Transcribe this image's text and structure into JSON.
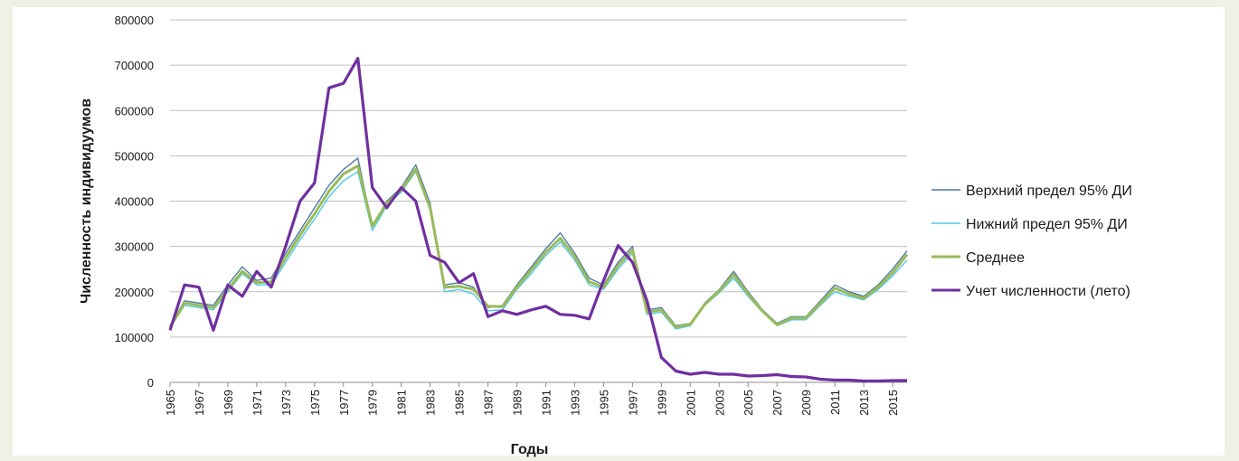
{
  "chart_data": {
    "type": "line",
    "xlabel": "Годы",
    "ylabel": "Численность индивидуумов",
    "ylim": [
      0,
      800000
    ],
    "xlim": [
      1965,
      2016
    ],
    "y_ticks": [
      "0",
      "100000",
      "200000",
      "300000",
      "400000",
      "500000",
      "600000",
      "700000",
      "800000"
    ],
    "x_ticks": [
      "1965",
      "1967",
      "1969",
      "1971",
      "1973",
      "1975",
      "1977",
      "1979",
      "1981",
      "1983",
      "1985",
      "1987",
      "1989",
      "1991",
      "1993",
      "1995",
      "1997",
      "1999",
      "2001",
      "2003",
      "2005",
      "2007",
      "2009",
      "2011",
      "2013",
      "2015"
    ],
    "grid": "horizontal",
    "legend_position": "right",
    "x": [
      1965,
      1966,
      1967,
      1968,
      1969,
      1970,
      1971,
      1972,
      1973,
      1974,
      1975,
      1976,
      1977,
      1978,
      1979,
      1980,
      1981,
      1982,
      1983,
      1984,
      1985,
      1986,
      1987,
      1988,
      1989,
      1990,
      1991,
      1992,
      1993,
      1994,
      1995,
      1996,
      1997,
      1998,
      1999,
      2000,
      2001,
      2002,
      2003,
      2004,
      2005,
      2006,
      2007,
      2008,
      2009,
      2010,
      2011,
      2012,
      2013,
      2014,
      2015,
      2016
    ],
    "series": [
      {
        "name": "Верхний предел 95% ДИ",
        "color": "#4f79a8",
        "values": [
          125000,
          180000,
          175000,
          170000,
          215000,
          255000,
          225000,
          230000,
          285000,
          335000,
          385000,
          435000,
          470000,
          495000,
          345000,
          400000,
          430000,
          480000,
          395000,
          215000,
          220000,
          210000,
          165000,
          170000,
          215000,
          255000,
          295000,
          330000,
          285000,
          230000,
          215000,
          265000,
          300000,
          160000,
          165000,
          125000,
          130000,
          175000,
          205000,
          245000,
          200000,
          160000,
          130000,
          145000,
          145000,
          180000,
          215000,
          200000,
          190000,
          215000,
          250000,
          290000
        ]
      },
      {
        "name": "Нижний предел 95% ДИ",
        "color": "#4fc8e6",
        "values": [
          120000,
          170000,
          165000,
          160000,
          200000,
          240000,
          215000,
          215000,
          265000,
          315000,
          360000,
          410000,
          445000,
          465000,
          335000,
          390000,
          420000,
          465000,
          380000,
          200000,
          205000,
          195000,
          158000,
          160000,
          205000,
          240000,
          280000,
          310000,
          270000,
          215000,
          205000,
          250000,
          285000,
          150000,
          155000,
          118000,
          125000,
          170000,
          198000,
          230000,
          190000,
          155000,
          125000,
          138000,
          138000,
          170000,
          200000,
          190000,
          182000,
          205000,
          235000,
          270000
        ]
      },
      {
        "name": "Среднее",
        "color": "#9bbb59",
        "values": [
          122000,
          175000,
          170000,
          165000,
          205000,
          245000,
          220000,
          222000,
          275000,
          325000,
          372000,
          422000,
          460000,
          478000,
          345000,
          395000,
          425000,
          470000,
          385000,
          210000,
          212000,
          205000,
          168000,
          167000,
          210000,
          248000,
          287000,
          318000,
          278000,
          222000,
          210000,
          258000,
          292000,
          155000,
          160000,
          122000,
          128000,
          172000,
          202000,
          238000,
          195000,
          157000,
          127000,
          142000,
          142000,
          175000,
          208000,
          195000,
          186000,
          210000,
          242000,
          282000
        ]
      },
      {
        "name": "Учет численности (лето)",
        "color": "#7030a0",
        "values": [
          115000,
          215000,
          210000,
          115000,
          215000,
          190000,
          245000,
          210000,
          300000,
          400000,
          440000,
          650000,
          660000,
          715000,
          430000,
          385000,
          430000,
          400000,
          280000,
          265000,
          220000,
          240000,
          145000,
          158000,
          150000,
          160000,
          168000,
          150000,
          148000,
          140000,
          225000,
          302000,
          265000,
          180000,
          55000,
          25000,
          18000,
          22000,
          18000,
          18000,
          14000,
          15000,
          17000,
          13000,
          12000,
          7000,
          5000,
          5000,
          3000,
          3000,
          4000,
          4000
        ]
      }
    ]
  }
}
